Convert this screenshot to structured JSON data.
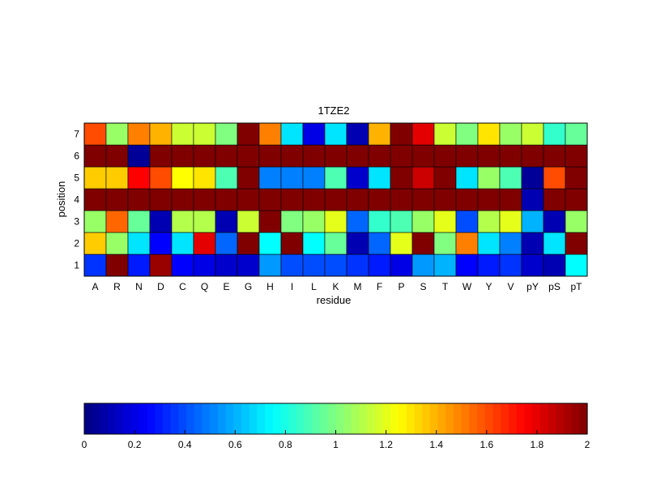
{
  "chart_data": {
    "type": "heatmap",
    "title": "1TZE2",
    "xlabel": "residue",
    "ylabel": "position",
    "x_categories": [
      "A",
      "R",
      "N",
      "D",
      "C",
      "Q",
      "E",
      "G",
      "H",
      "I",
      "L",
      "K",
      "M",
      "F",
      "P",
      "S",
      "T",
      "W",
      "Y",
      "V",
      "pY",
      "pS",
      "pT"
    ],
    "y_categories": [
      "1",
      "2",
      "3",
      "4",
      "5",
      "6",
      "7"
    ],
    "values": [
      [
        0.35,
        2.0,
        0.3,
        1.95,
        0.25,
        0.2,
        0.15,
        0.15,
        0.55,
        0.4,
        0.4,
        0.4,
        0.35,
        0.3,
        0.2,
        0.55,
        0.6,
        0.25,
        0.3,
        0.35,
        0.15,
        0.1,
        0.75
      ],
      [
        1.35,
        1.05,
        0.7,
        0.25,
        0.7,
        1.8,
        0.45,
        2.0,
        0.75,
        2.0,
        0.75,
        0.95,
        0.1,
        0.45,
        1.2,
        2.0,
        1.0,
        1.5,
        0.7,
        0.5,
        0.1,
        0.7,
        2.0
      ],
      [
        1.05,
        1.55,
        0.95,
        0.1,
        1.1,
        1.1,
        0.1,
        1.15,
        2.0,
        1.0,
        1.05,
        1.2,
        0.45,
        0.85,
        0.9,
        1.05,
        1.2,
        0.4,
        1.1,
        1.2,
        0.6,
        0.1,
        1.05
      ],
      [
        2.0,
        2.0,
        2.0,
        2.0,
        2.0,
        2.0,
        2.0,
        2.0,
        2.0,
        2.0,
        2.0,
        2.0,
        2.0,
        2.0,
        2.0,
        2.0,
        2.0,
        2.0,
        2.0,
        2.0,
        0.1,
        2.0,
        2.0
      ],
      [
        1.35,
        1.35,
        1.75,
        1.6,
        1.25,
        1.3,
        0.9,
        2.0,
        0.5,
        0.5,
        0.5,
        0.9,
        0.15,
        0.7,
        2.0,
        1.85,
        2.0,
        0.7,
        1.05,
        0.9,
        0.05,
        1.6,
        2.0
      ],
      [
        2.0,
        2.0,
        0.05,
        2.0,
        2.0,
        2.0,
        2.0,
        2.0,
        2.0,
        2.0,
        2.0,
        2.0,
        2.0,
        2.0,
        2.0,
        2.0,
        2.0,
        2.0,
        2.0,
        2.0,
        2.0,
        2.0,
        2.0
      ],
      [
        1.6,
        1.05,
        1.5,
        1.4,
        1.15,
        1.15,
        1.0,
        2.0,
        1.5,
        0.7,
        0.2,
        0.7,
        0.1,
        1.4,
        2.0,
        1.8,
        1.15,
        1.0,
        1.3,
        1.05,
        1.15,
        0.85,
        0.95
      ]
    ],
    "colormap": "jet",
    "clim": [
      0,
      2
    ],
    "colorbar": {
      "orientation": "horizontal",
      "placement": "bottom",
      "ticks": [
        0,
        0.2,
        0.4,
        0.6,
        0.8,
        1,
        1.2,
        1.4,
        1.6,
        1.8,
        2
      ],
      "tick_labels": [
        "0",
        "0.2",
        "0.4",
        "0.6",
        "0.8",
        "1",
        "1.2",
        "1.4",
        "1.6",
        "1.8",
        "2"
      ]
    },
    "grid": false
  }
}
